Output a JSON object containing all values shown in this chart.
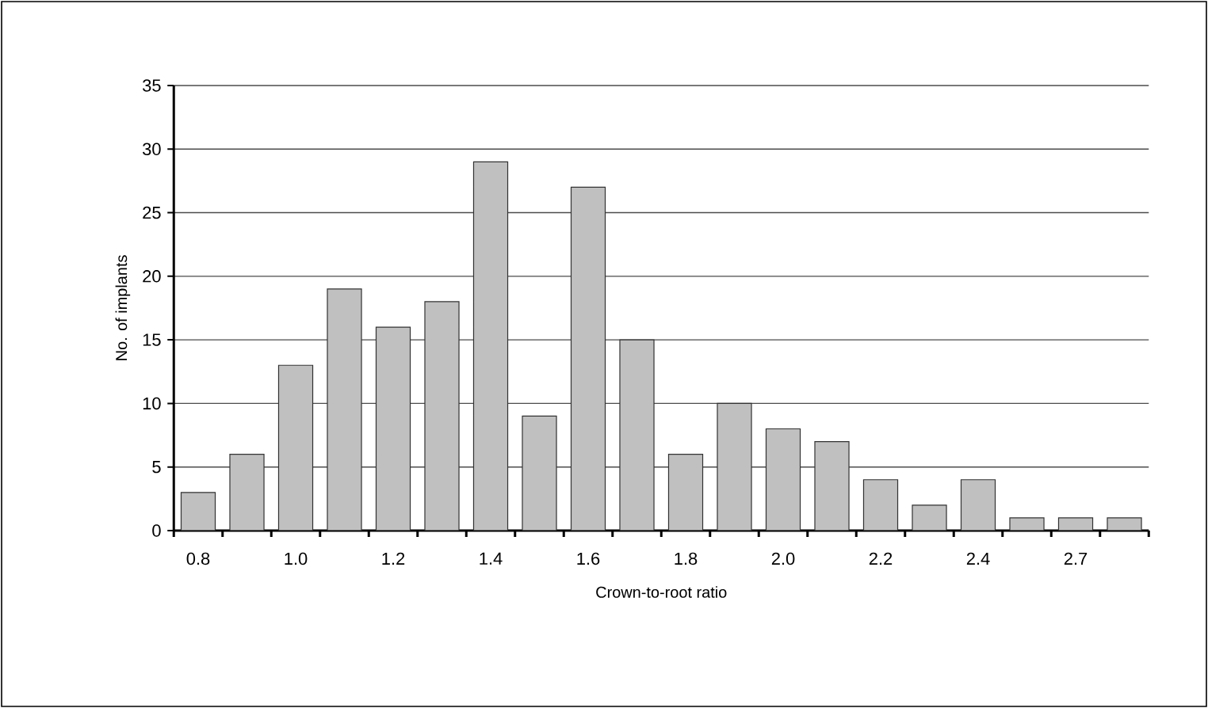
{
  "chart_data": {
    "type": "bar",
    "xlabel": "Crown-to-root ratio",
    "ylabel": "No. of implants",
    "categories": [
      "0.8",
      null,
      "1.0",
      null,
      "1.2",
      null,
      "1.4",
      null,
      "1.6",
      null,
      "1.8",
      null,
      "2.0",
      null,
      "2.2",
      null,
      "2.4",
      null,
      "2.7",
      null
    ],
    "values": [
      3,
      6,
      13,
      19,
      16,
      18,
      29,
      9,
      27,
      15,
      6,
      10,
      8,
      7,
      4,
      2,
      4,
      1,
      1,
      1
    ],
    "color": "#c0c0c0",
    "ylim": [
      0,
      35
    ],
    "yticks": [
      0,
      5,
      10,
      15,
      20,
      25,
      30,
      35
    ],
    "grid": "y"
  }
}
